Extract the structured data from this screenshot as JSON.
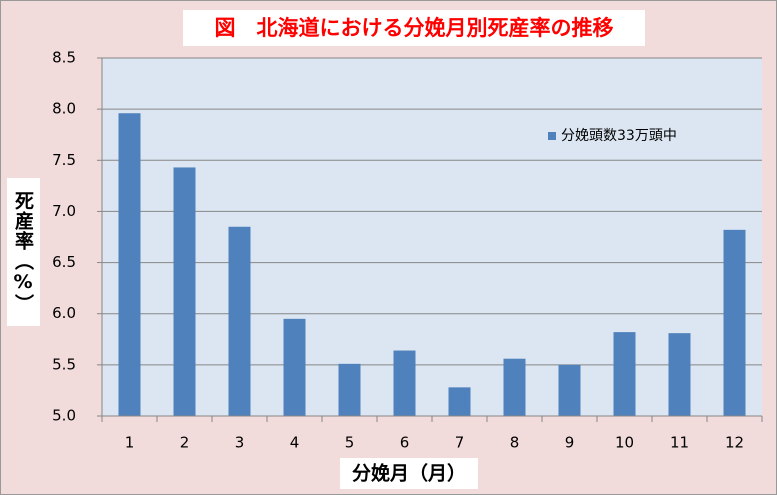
{
  "chart_data": {
    "type": "bar",
    "title": "図　北海道における分娩月別死産率の推移",
    "y_label": "死産率（%）",
    "x_label": "分娩月（月）",
    "categories": [
      "1",
      "2",
      "3",
      "4",
      "5",
      "6",
      "7",
      "8",
      "9",
      "10",
      "11",
      "12"
    ],
    "series": [
      {
        "name": "分娩頭数33万頭中",
        "color": "#4f81bd",
        "values": [
          7.96,
          7.43,
          6.85,
          5.95,
          5.51,
          5.64,
          5.28,
          5.56,
          5.5,
          5.82,
          5.81,
          6.82
        ]
      }
    ],
    "ylim": [
      5.0,
      8.5
    ],
    "yticks": [
      {
        "value": 5.0,
        "label": "5.0"
      },
      {
        "value": 5.5,
        "label": "5.5"
      },
      {
        "value": 6.0,
        "label": "6.0"
      },
      {
        "value": 6.5,
        "label": "6.5"
      },
      {
        "value": 7.0,
        "label": "7.0"
      },
      {
        "value": 7.5,
        "label": "7.5"
      },
      {
        "value": 8.0,
        "label": "8.0"
      },
      {
        "value": 8.5,
        "label": "8.5"
      }
    ],
    "grid": true,
    "legend_position": "upper right"
  }
}
